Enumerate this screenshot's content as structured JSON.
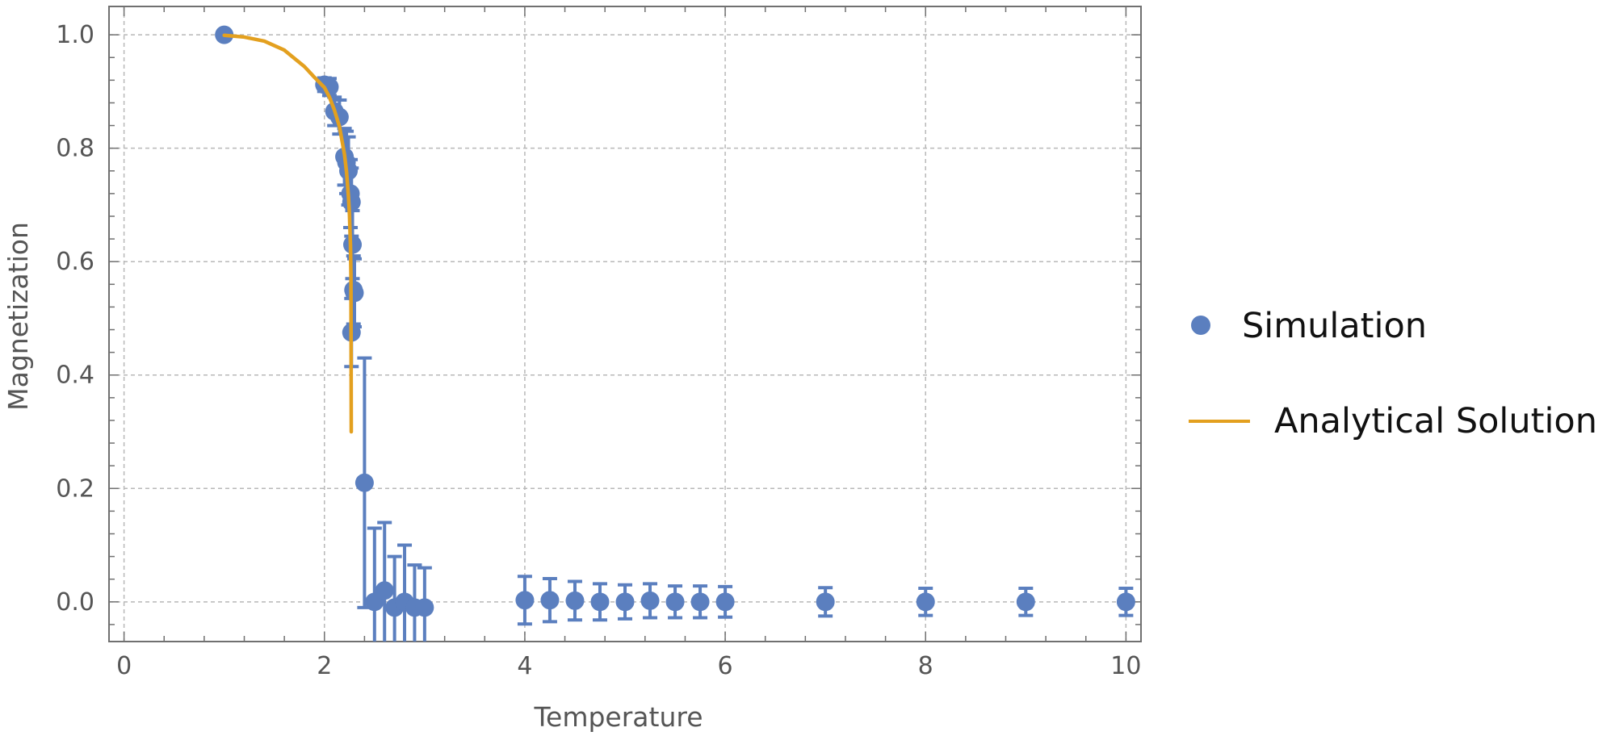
{
  "colors": {
    "simulation": "#5b7fbf",
    "analytical": "#e3a01f",
    "frame": "#707070",
    "grid": "#b8b8b8"
  },
  "legend": {
    "simulation": "Simulation",
    "analytical": "Analytical Solution"
  },
  "chart_data": {
    "type": "scatter",
    "title": "",
    "xlabel": "Temperature",
    "ylabel": "Magnetization",
    "xlim": [
      -0.15,
      10.15
    ],
    "ylim": [
      -0.07,
      1.05
    ],
    "xticks": [
      0,
      2,
      4,
      6,
      8,
      10
    ],
    "yticks": [
      0.0,
      0.2,
      0.4,
      0.6,
      0.8,
      1.0
    ],
    "xtick_labels": [
      "0",
      "2",
      "4",
      "6",
      "8",
      "10"
    ],
    "ytick_labels": [
      "0.0",
      "0.2",
      "0.4",
      "0.6",
      "0.8",
      "1.0"
    ],
    "grid": true,
    "legend_position": "right",
    "series": [
      {
        "name": "Simulation",
        "kind": "points-with-error-bars",
        "points": [
          {
            "x": 1.0,
            "y": 1.0,
            "err": 0.0
          },
          {
            "x": 2.0,
            "y": 0.912,
            "err": 0.012
          },
          {
            "x": 2.05,
            "y": 0.908,
            "err": 0.015
          },
          {
            "x": 2.1,
            "y": 0.865,
            "err": 0.025
          },
          {
            "x": 2.15,
            "y": 0.855,
            "err": 0.03
          },
          {
            "x": 2.2,
            "y": 0.785,
            "err": 0.05
          },
          {
            "x": 2.22,
            "y": 0.775,
            "err": 0.055
          },
          {
            "x": 2.24,
            "y": 0.76,
            "err": 0.06
          },
          {
            "x": 2.26,
            "y": 0.72,
            "err": 0.06
          },
          {
            "x": 2.27,
            "y": 0.705,
            "err": 0.06
          },
          {
            "x": 2.28,
            "y": 0.63,
            "err": 0.06
          },
          {
            "x": 2.29,
            "y": 0.55,
            "err": 0.06
          },
          {
            "x": 2.3,
            "y": 0.545,
            "err": 0.06
          },
          {
            "x": 2.27,
            "y": 0.475,
            "err": 0.06
          },
          {
            "x": 2.4,
            "y": 0.21,
            "err": 0.22
          },
          {
            "x": 2.5,
            "y": 0.0,
            "err": 0.13
          },
          {
            "x": 2.6,
            "y": 0.02,
            "err": 0.12
          },
          {
            "x": 2.7,
            "y": -0.01,
            "err": 0.09
          },
          {
            "x": 2.8,
            "y": 0.0,
            "err": 0.1
          },
          {
            "x": 2.9,
            "y": -0.01,
            "err": 0.075
          },
          {
            "x": 3.0,
            "y": -0.01,
            "err": 0.07
          },
          {
            "x": 4.0,
            "y": 0.003,
            "err": 0.042
          },
          {
            "x": 4.25,
            "y": 0.003,
            "err": 0.038
          },
          {
            "x": 4.5,
            "y": 0.002,
            "err": 0.034
          },
          {
            "x": 4.75,
            "y": 0.0,
            "err": 0.032
          },
          {
            "x": 5.0,
            "y": 0.0,
            "err": 0.03
          },
          {
            "x": 5.25,
            "y": 0.002,
            "err": 0.03
          },
          {
            "x": 5.5,
            "y": 0.0,
            "err": 0.028
          },
          {
            "x": 5.75,
            "y": 0.0,
            "err": 0.028
          },
          {
            "x": 6.0,
            "y": 0.0,
            "err": 0.027
          },
          {
            "x": 7.0,
            "y": 0.0,
            "err": 0.025
          },
          {
            "x": 8.0,
            "y": 0.0,
            "err": 0.024
          },
          {
            "x": 9.0,
            "y": 0.0,
            "err": 0.024
          },
          {
            "x": 10.0,
            "y": 0.0,
            "err": 0.024
          }
        ]
      },
      {
        "name": "Analytical Solution",
        "kind": "line",
        "x": [
          1.0,
          1.2,
          1.4,
          1.6,
          1.8,
          1.9,
          2.0,
          2.05,
          2.1,
          2.15,
          2.2,
          2.22,
          2.24,
          2.25,
          2.26,
          2.265,
          2.268
        ],
        "y": [
          0.999,
          0.996,
          0.989,
          0.973,
          0.944,
          0.925,
          0.907,
          0.89,
          0.867,
          0.838,
          0.789,
          0.759,
          0.715,
          0.682,
          0.629,
          0.575,
          0.3
        ]
      }
    ]
  }
}
